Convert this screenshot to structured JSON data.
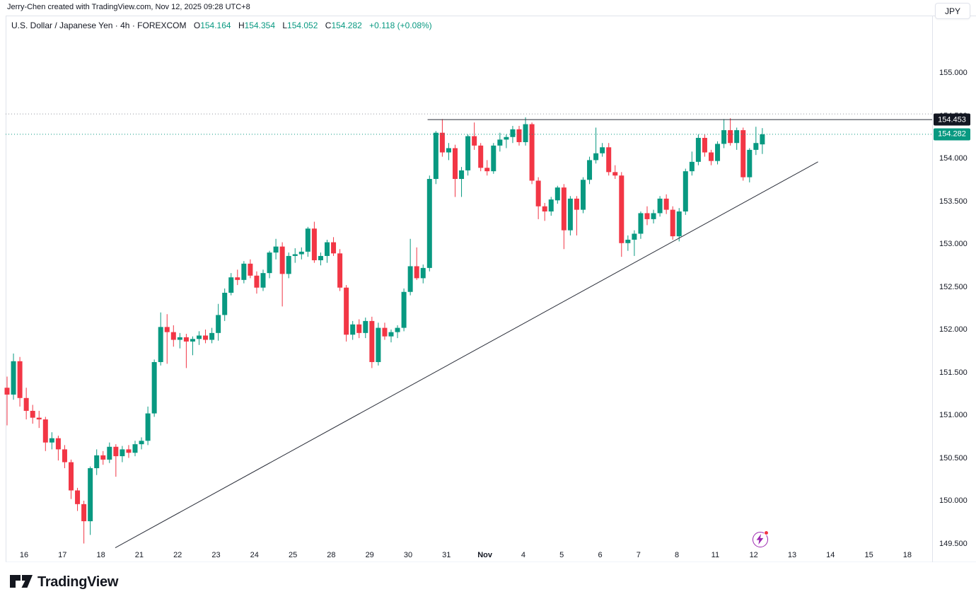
{
  "attribution": "Jerry-Chen created with TradingView.com, Nov 12, 2025 09:28 UTC+8",
  "legend": {
    "symbol_title": "U.S. Dollar / Japanese Yen",
    "interval": "4h",
    "exchange": "FOREXCOM",
    "separator": "·",
    "o_label": "O",
    "o_value": "154.164",
    "h_label": "H",
    "h_value": "154.354",
    "l_label": "L",
    "l_value": "154.052",
    "c_label": "C",
    "c_value": "154.282",
    "change": "+0.118 (+0.08%)"
  },
  "currency_button_label": "JPY",
  "price_scale": {
    "badges": [
      {
        "value": "154.453",
        "price": 154.453,
        "bg": "#131722",
        "name": "drawing-price-badge"
      },
      {
        "value": "154.282",
        "price": 154.282,
        "bg": "#089981",
        "name": "last-price-badge"
      }
    ]
  },
  "footer": {
    "logo_text": "TradingView"
  },
  "colors": {
    "up": "#089981",
    "down": "#f23645",
    "axis_text": "#131722",
    "border": "#e0e3eb",
    "drawing": "#2a2e39",
    "dotted_gray": "#9598a1"
  },
  "chart_data": {
    "type": "candlestick",
    "title": "U.S. Dollar / Japanese Yen, 4h, FOREXCOM",
    "last_ohlc": {
      "open": 154.164,
      "high": 154.354,
      "low": 154.052,
      "close": 154.282,
      "change": 0.118,
      "change_pct": 0.08
    },
    "y_axis": {
      "ticks": [
        "155.000",
        "154.500",
        "154.000",
        "153.500",
        "153.000",
        "152.500",
        "152.000",
        "151.500",
        "151.000",
        "150.500",
        "150.000",
        "149.500"
      ],
      "visible_range": [
        149.45,
        155.65
      ],
      "grid": false,
      "side": "right"
    },
    "x_axis": {
      "labels": [
        "16",
        "17",
        "18",
        "21",
        "22",
        "23",
        "24",
        "25",
        "28",
        "29",
        "30",
        "31",
        "Nov",
        "4",
        "5",
        "6",
        "7",
        "8",
        "11",
        "12",
        "13",
        "14",
        "15",
        "18"
      ],
      "bold_label": "Nov"
    },
    "candles": [
      [
        151.32,
        151.45,
        150.88,
        151.24
      ],
      [
        151.24,
        151.72,
        151.18,
        151.63
      ],
      [
        151.63,
        151.68,
        151.1,
        151.2
      ],
      [
        151.2,
        151.32,
        150.95,
        151.05
      ],
      [
        151.05,
        151.12,
        150.9,
        150.97
      ],
      [
        150.97,
        151.05,
        150.85,
        150.95
      ],
      [
        150.95,
        150.98,
        150.58,
        150.68
      ],
      [
        150.68,
        150.8,
        150.6,
        150.73
      ],
      [
        150.73,
        150.76,
        150.47,
        150.6
      ],
      [
        150.6,
        150.65,
        150.38,
        150.45
      ],
      [
        150.45,
        150.48,
        150.02,
        150.12
      ],
      [
        150.12,
        150.15,
        149.88,
        149.96
      ],
      [
        149.96,
        150.0,
        149.5,
        149.76
      ],
      [
        149.76,
        150.4,
        149.6,
        150.38
      ],
      [
        150.38,
        150.6,
        150.3,
        150.53
      ],
      [
        150.53,
        150.58,
        150.42,
        150.48
      ],
      [
        150.48,
        150.68,
        150.44,
        150.63
      ],
      [
        150.63,
        150.66,
        150.28,
        150.52
      ],
      [
        150.52,
        150.64,
        150.45,
        150.6
      ],
      [
        150.6,
        150.65,
        150.5,
        150.56
      ],
      [
        150.56,
        150.7,
        150.52,
        150.66
      ],
      [
        150.66,
        150.74,
        150.6,
        150.7
      ],
      [
        150.7,
        151.1,
        150.65,
        151.02
      ],
      [
        151.02,
        151.65,
        150.98,
        151.62
      ],
      [
        151.62,
        152.2,
        151.58,
        152.03
      ],
      [
        152.03,
        152.18,
        151.6,
        151.97
      ],
      [
        151.97,
        152.05,
        151.8,
        151.88
      ],
      [
        151.88,
        151.96,
        151.78,
        151.91
      ],
      [
        151.91,
        151.95,
        151.55,
        151.86
      ],
      [
        151.86,
        151.92,
        151.7,
        151.89
      ],
      [
        151.89,
        151.98,
        151.82,
        151.93
      ],
      [
        151.93,
        152.0,
        151.84,
        151.88
      ],
      [
        151.88,
        152.02,
        151.84,
        151.96
      ],
      [
        151.96,
        152.3,
        151.87,
        152.17
      ],
      [
        152.17,
        152.48,
        152.1,
        152.43
      ],
      [
        152.43,
        152.66,
        152.4,
        152.61
      ],
      [
        152.61,
        152.7,
        152.52,
        152.58
      ],
      [
        152.58,
        152.8,
        152.54,
        152.77
      ],
      [
        152.77,
        152.82,
        152.6,
        152.63
      ],
      [
        152.63,
        152.68,
        152.42,
        152.49
      ],
      [
        152.49,
        152.7,
        152.45,
        152.66
      ],
      [
        152.66,
        152.92,
        152.6,
        152.9
      ],
      [
        152.9,
        153.06,
        152.82,
        152.97
      ],
      [
        152.97,
        153.02,
        152.27,
        152.65
      ],
      [
        152.65,
        152.9,
        152.6,
        152.86
      ],
      [
        152.86,
        152.95,
        152.78,
        152.88
      ],
      [
        152.88,
        152.96,
        152.82,
        152.91
      ],
      [
        152.91,
        153.2,
        152.85,
        153.18
      ],
      [
        153.18,
        153.26,
        152.78,
        152.81
      ],
      [
        152.81,
        152.9,
        152.75,
        152.86
      ],
      [
        152.86,
        153.05,
        152.78,
        153.02
      ],
      [
        153.02,
        153.08,
        152.86,
        152.89
      ],
      [
        152.89,
        152.94,
        152.45,
        152.49
      ],
      [
        152.49,
        152.52,
        151.86,
        151.94
      ],
      [
        151.94,
        152.1,
        151.88,
        152.06
      ],
      [
        152.06,
        152.12,
        151.9,
        151.96
      ],
      [
        151.96,
        152.14,
        151.9,
        152.1
      ],
      [
        152.1,
        152.15,
        151.55,
        151.62
      ],
      [
        151.62,
        152.08,
        151.58,
        152.02
      ],
      [
        152.02,
        152.08,
        151.88,
        151.92
      ],
      [
        151.92,
        152.0,
        151.85,
        151.97
      ],
      [
        151.97,
        152.05,
        151.9,
        152.02
      ],
      [
        152.02,
        152.48,
        151.98,
        152.44
      ],
      [
        152.44,
        153.06,
        152.4,
        152.74
      ],
      [
        152.74,
        152.96,
        152.58,
        152.6
      ],
      [
        152.6,
        152.76,
        152.54,
        152.72
      ],
      [
        152.72,
        153.8,
        152.68,
        153.76
      ],
      [
        153.76,
        154.32,
        153.7,
        154.3
      ],
      [
        154.3,
        154.46,
        154.02,
        154.07
      ],
      [
        154.07,
        154.18,
        153.98,
        154.12
      ],
      [
        154.12,
        154.16,
        153.55,
        153.76
      ],
      [
        153.76,
        153.9,
        153.55,
        153.86
      ],
      [
        153.86,
        154.28,
        153.8,
        154.26
      ],
      [
        154.26,
        154.42,
        154.1,
        154.15
      ],
      [
        154.15,
        154.18,
        153.85,
        153.89
      ],
      [
        153.89,
        153.98,
        153.8,
        153.85
      ],
      [
        153.85,
        154.18,
        153.82,
        154.15
      ],
      [
        154.15,
        154.3,
        154.08,
        154.22
      ],
      [
        154.22,
        154.28,
        154.12,
        154.25
      ],
      [
        154.25,
        154.38,
        154.18,
        154.34
      ],
      [
        154.34,
        154.38,
        154.15,
        154.19
      ],
      [
        154.19,
        154.48,
        154.15,
        154.4
      ],
      [
        154.4,
        154.42,
        153.7,
        153.74
      ],
      [
        153.74,
        153.78,
        153.29,
        153.44
      ],
      [
        153.44,
        153.48,
        153.27,
        153.38
      ],
      [
        153.38,
        153.55,
        153.33,
        153.52
      ],
      [
        153.51,
        153.68,
        153.47,
        153.66
      ],
      [
        153.66,
        153.7,
        152.94,
        153.16
      ],
      [
        153.16,
        153.56,
        153.1,
        153.53
      ],
      [
        153.53,
        153.56,
        153.1,
        153.4
      ],
      [
        153.4,
        153.78,
        153.36,
        153.75
      ],
      [
        153.75,
        154.02,
        153.7,
        153.98
      ],
      [
        153.98,
        154.36,
        153.94,
        154.06
      ],
      [
        154.06,
        154.18,
        154.02,
        154.13
      ],
      [
        154.13,
        154.18,
        153.8,
        153.84
      ],
      [
        153.84,
        153.92,
        153.76,
        153.8
      ],
      [
        153.8,
        153.84,
        152.85,
        153.01
      ],
      [
        153.01,
        153.1,
        152.92,
        153.05
      ],
      [
        153.05,
        153.16,
        152.86,
        153.12
      ],
      [
        153.12,
        153.38,
        153.06,
        153.36
      ],
      [
        153.36,
        153.44,
        153.22,
        153.29
      ],
      [
        153.29,
        153.4,
        153.24,
        153.36
      ],
      [
        153.36,
        153.56,
        153.32,
        153.53
      ],
      [
        153.53,
        153.58,
        153.35,
        153.4
      ],
      [
        153.4,
        153.44,
        153.05,
        153.09
      ],
      [
        153.09,
        153.42,
        153.03,
        153.38
      ],
      [
        153.38,
        153.88,
        153.34,
        153.85
      ],
      [
        153.85,
        154.08,
        153.8,
        153.96
      ],
      [
        153.96,
        154.28,
        153.92,
        154.24
      ],
      [
        154.24,
        154.28,
        154.02,
        154.07
      ],
      [
        154.07,
        154.1,
        153.92,
        153.97
      ],
      [
        153.97,
        154.2,
        153.93,
        154.17
      ],
      [
        154.17,
        154.46,
        154.12,
        154.33
      ],
      [
        154.33,
        154.47,
        154.15,
        154.18
      ],
      [
        154.18,
        154.36,
        154.1,
        154.33
      ],
      [
        154.33,
        154.36,
        153.74,
        153.78
      ],
      [
        153.78,
        154.12,
        153.72,
        154.1
      ],
      [
        154.1,
        154.37,
        154.04,
        154.18
      ],
      [
        154.164,
        154.354,
        154.052,
        154.282
      ]
    ],
    "lines": [
      {
        "name": "high-dotted-line",
        "kind": "horizontal",
        "style": "dotted",
        "price": 154.52,
        "color": "#9598a1",
        "full_width": true
      },
      {
        "name": "resistance-line",
        "kind": "horizontal",
        "style": "solid",
        "price": 154.453,
        "color": "#2a2e39",
        "from_bar": 65.7,
        "to_right_edge": true
      },
      {
        "name": "last-price-line",
        "kind": "horizontal",
        "style": "dotted",
        "price": 154.282,
        "color": "#089981",
        "full_width": true
      },
      {
        "name": "ascending-trendline",
        "kind": "segment",
        "style": "solid",
        "color": "#2a2e39",
        "from": {
          "bar": 16.9,
          "price": 149.45
        },
        "to": {
          "bar": 126.7,
          "price": 153.96
        }
      }
    ]
  }
}
